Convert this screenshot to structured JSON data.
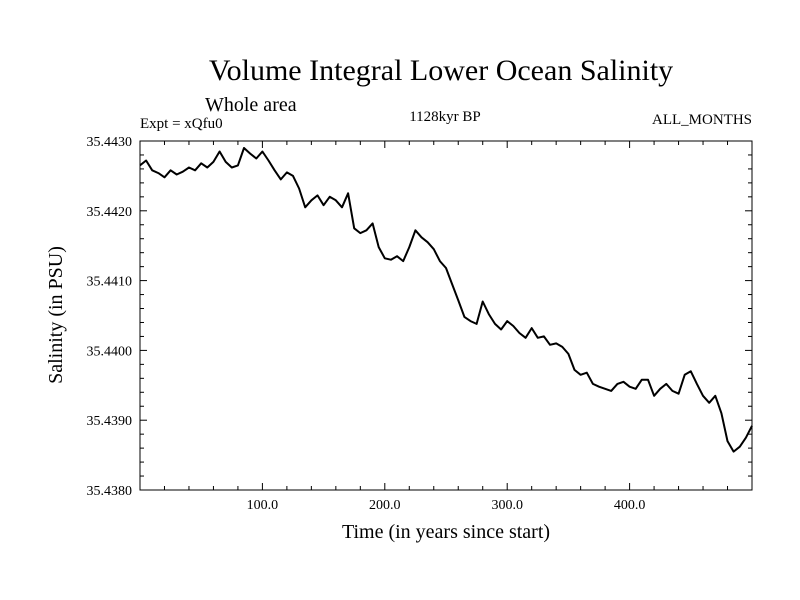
{
  "chart_data": {
    "type": "line",
    "title": "Volume Integral Lower Ocean Salinity",
    "subtitle": "Whole area",
    "expt_label": "Expt = xQfu0",
    "period_label": "1128kyr BP",
    "months_label": "ALL_MONTHS",
    "xlabel": "Time (in years since start)",
    "ylabel": "Salinity (in PSU)",
    "xlim": [
      0,
      500
    ],
    "ylim": [
      35.438,
      35.443
    ],
    "x_ticks": [
      100,
      200,
      300,
      400
    ],
    "x_tick_labels": [
      "100.0",
      "200.0",
      "300.0",
      "400.0"
    ],
    "y_ticks": [
      35.438,
      35.439,
      35.44,
      35.441,
      35.442,
      35.443
    ],
    "y_tick_labels": [
      "35.4380",
      "35.4390",
      "35.4400",
      "35.4410",
      "35.4420",
      "35.4430"
    ],
    "series": [
      {
        "name": "Salinity",
        "color": "#000000",
        "x": [
          0,
          5,
          10,
          15,
          20,
          25,
          30,
          35,
          40,
          45,
          50,
          55,
          60,
          65,
          70,
          75,
          80,
          85,
          90,
          95,
          100,
          105,
          110,
          115,
          120,
          125,
          130,
          135,
          140,
          145,
          150,
          155,
          160,
          165,
          170,
          175,
          180,
          185,
          190,
          195,
          200,
          205,
          210,
          215,
          220,
          225,
          230,
          235,
          240,
          245,
          250,
          255,
          260,
          265,
          270,
          275,
          280,
          285,
          290,
          295,
          300,
          305,
          310,
          315,
          320,
          325,
          330,
          335,
          340,
          345,
          350,
          355,
          360,
          365,
          370,
          375,
          380,
          385,
          390,
          395,
          400,
          405,
          410,
          415,
          420,
          425,
          430,
          435,
          440,
          445,
          450,
          455,
          460,
          465,
          470,
          475,
          480,
          485,
          490,
          495,
          500
        ],
        "values": [
          35.44265,
          35.44272,
          35.44258,
          35.44254,
          35.44248,
          35.44258,
          35.44252,
          35.44256,
          35.44262,
          35.44258,
          35.44268,
          35.44262,
          35.4427,
          35.44285,
          35.4427,
          35.44262,
          35.44265,
          35.4429,
          35.44282,
          35.44275,
          35.44285,
          35.44272,
          35.44258,
          35.44245,
          35.44255,
          35.4425,
          35.44232,
          35.44205,
          35.44215,
          35.44222,
          35.44208,
          35.4422,
          35.44215,
          35.44205,
          35.44225,
          35.44175,
          35.44168,
          35.44172,
          35.44182,
          35.44148,
          35.44132,
          35.4413,
          35.44135,
          35.44128,
          35.44148,
          35.44172,
          35.44162,
          35.44155,
          35.44145,
          35.44128,
          35.44118,
          35.44095,
          35.44072,
          35.44048,
          35.44042,
          35.44038,
          35.4407,
          35.44052,
          35.44038,
          35.4403,
          35.44042,
          35.44035,
          35.44025,
          35.44018,
          35.44032,
          35.44018,
          35.4402,
          35.44008,
          35.4401,
          35.44005,
          35.43995,
          35.43972,
          35.43965,
          35.43968,
          35.43952,
          35.43948,
          35.43945,
          35.43942,
          35.43952,
          35.43955,
          35.43948,
          35.43945,
          35.43958,
          35.43958,
          35.43935,
          35.43945,
          35.43952,
          35.43942,
          35.43938,
          35.43965,
          35.4397,
          35.43952,
          35.43935,
          35.43925,
          35.43935,
          35.4391,
          35.4387,
          35.43855,
          35.43862,
          35.43875,
          35.43892
        ]
      }
    ]
  }
}
